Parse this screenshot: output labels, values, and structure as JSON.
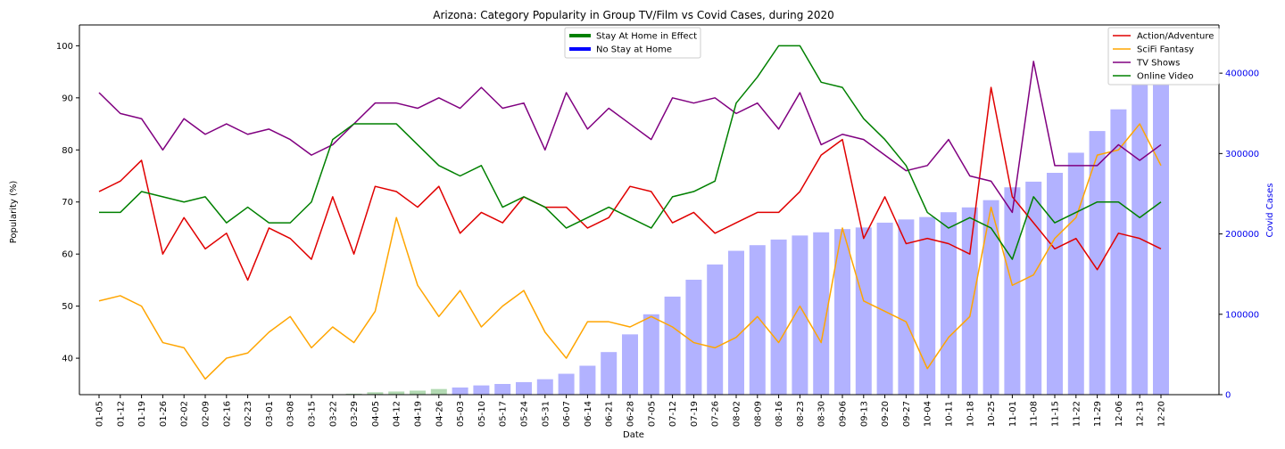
{
  "colors": {
    "action": "#e00000",
    "scifi": "#ffa500",
    "tv": "#800080",
    "online": "#008000",
    "stay_bar": "#008000",
    "nostay_bar": "#0000ff",
    "right_axis": "#0000ee"
  },
  "chart_data": {
    "type": "line",
    "title": "Arizona: Category Popularity in Group TV/Film vs Covid Cases, during 2020",
    "xlabel": "Date",
    "ylabel": "Popularity (%)",
    "y2label": "Covid Cases",
    "ylim": [
      33,
      104
    ],
    "y2lim": [
      0,
      460000
    ],
    "yticks": [
      40,
      50,
      60,
      70,
      80,
      90,
      100
    ],
    "y2ticks": [
      0,
      100000,
      200000,
      300000,
      400000
    ],
    "y2ticklabels": [
      "0",
      "100000",
      "200000",
      "300000",
      "400000"
    ],
    "grid": false,
    "categories": [
      "01-05",
      "01-12",
      "01-19",
      "01-26",
      "02-02",
      "02-09",
      "02-16",
      "02-23",
      "03-01",
      "03-08",
      "03-15",
      "03-22",
      "03-29",
      "04-05",
      "04-12",
      "04-19",
      "04-26",
      "05-03",
      "05-10",
      "05-17",
      "05-24",
      "05-31",
      "06-07",
      "06-14",
      "06-21",
      "06-28",
      "07-05",
      "07-12",
      "07-19",
      "07-26",
      "08-02",
      "08-09",
      "08-16",
      "08-23",
      "08-30",
      "09-06",
      "09-13",
      "09-20",
      "09-27",
      "10-04",
      "10-11",
      "10-18",
      "10-25",
      "11-01",
      "11-08",
      "11-15",
      "11-22",
      "11-29",
      "12-06",
      "12-13",
      "12-20"
    ],
    "series": [
      {
        "name": "Action/Adventure",
        "color_key": "action",
        "values": [
          72,
          74,
          78,
          60,
          67,
          61,
          64,
          55,
          65,
          63,
          59,
          71,
          60,
          73,
          72,
          69,
          73,
          64,
          68,
          66,
          71,
          69,
          69,
          65,
          67,
          73,
          72,
          66,
          68,
          64,
          66,
          68,
          68,
          72,
          79,
          82,
          63,
          71,
          62,
          63,
          62,
          60,
          92,
          71,
          66,
          61,
          63,
          57,
          64,
          63,
          61
        ]
      },
      {
        "name": "SciFi Fantasy",
        "color_key": "scifi",
        "values": [
          51,
          52,
          50,
          43,
          42,
          36,
          40,
          41,
          45,
          48,
          42,
          46,
          43,
          49,
          67,
          54,
          48,
          53,
          46,
          50,
          53,
          45,
          40,
          47,
          47,
          46,
          48,
          46,
          43,
          42,
          44,
          48,
          43,
          50,
          43,
          65,
          51,
          49,
          47,
          38,
          44,
          48,
          69,
          54,
          56,
          63,
          67,
          79,
          80,
          85,
          77
        ]
      },
      {
        "name": "TV Shows",
        "color_key": "tv",
        "values": [
          91,
          87,
          86,
          80,
          86,
          83,
          85,
          83,
          84,
          82,
          79,
          81,
          85,
          89,
          89,
          88,
          90,
          88,
          92,
          88,
          89,
          80,
          91,
          84,
          88,
          85,
          82,
          90,
          89,
          90,
          87,
          89,
          84,
          91,
          81,
          83,
          82,
          79,
          76,
          77,
          82,
          75,
          74,
          68,
          97,
          77,
          77,
          77,
          81,
          78,
          81
        ]
      },
      {
        "name": "Online Video",
        "color_key": "online",
        "values": [
          68,
          68,
          72,
          71,
          70,
          71,
          66,
          69,
          66,
          66,
          70,
          82,
          85,
          85,
          85,
          81,
          77,
          75,
          77,
          69,
          71,
          69,
          65,
          67,
          69,
          67,
          65,
          71,
          72,
          74,
          89,
          94,
          100,
          100,
          93,
          92,
          86,
          82,
          77,
          68,
          65,
          67,
          65,
          59,
          71,
          66,
          68,
          70,
          70,
          67,
          70
        ]
      }
    ],
    "covid_cases": [
      0,
      0,
      0,
      0,
      0,
      0,
      0,
      0,
      0,
      0,
      0,
      200,
      1200,
      3000,
      3900,
      5000,
      7000,
      8900,
      11500,
      13300,
      15600,
      19200,
      26000,
      36000,
      53000,
      75000,
      100000,
      122000,
      143000,
      162000,
      179000,
      186000,
      193000,
      198000,
      202000,
      206000,
      208000,
      214000,
      218000,
      221000,
      227000,
      233000,
      242000,
      258000,
      265000,
      276000,
      301000,
      328000,
      355000,
      410000,
      452000
    ],
    "stay_at_home_last_index": 16,
    "legend_left": [
      {
        "label": "Stay At Home in Effect",
        "color_key": "stay_bar"
      },
      {
        "label": "No Stay at Home",
        "color_key": "nostay_bar"
      }
    ],
    "legend_right": [
      "Action/Adventure",
      "SciFi Fantasy",
      "TV Shows",
      "Online Video"
    ],
    "legend_placement_left": "top-center",
    "legend_placement_right": "top-right"
  }
}
